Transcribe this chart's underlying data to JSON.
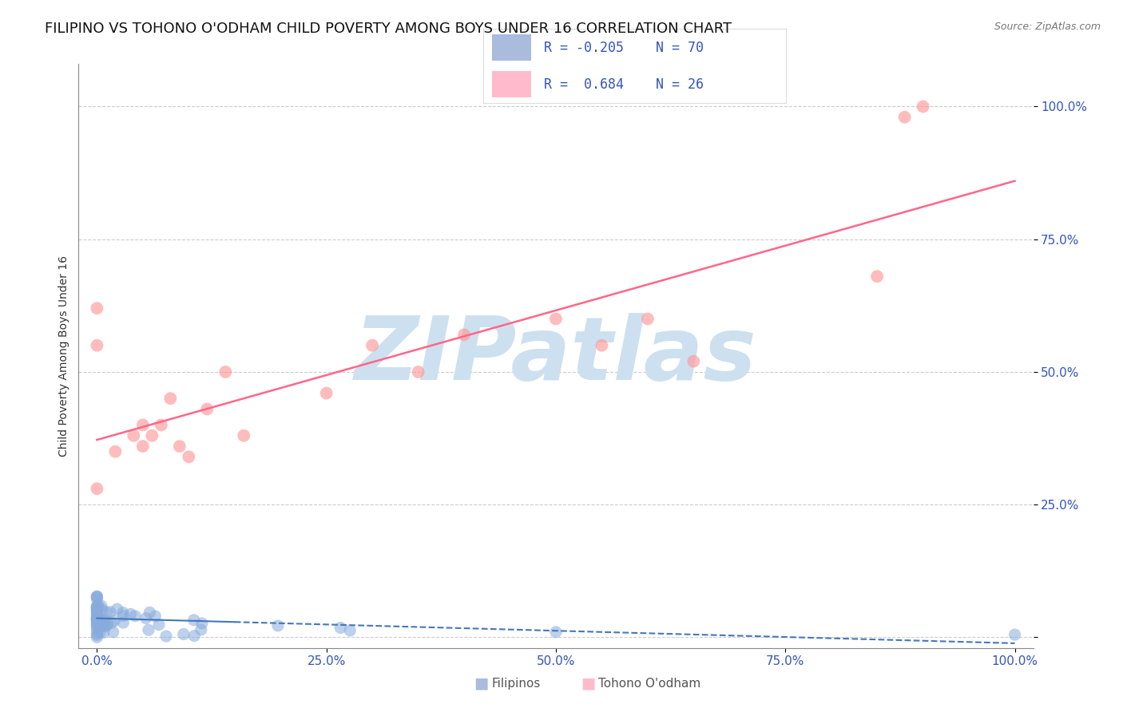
{
  "title": "FILIPINO VS TOHONO O'ODHAM CHILD POVERTY AMONG BOYS UNDER 16 CORRELATION CHART",
  "source": "Source: ZipAtlas.com",
  "ylabel": "Child Poverty Among Boys Under 16",
  "watermark": "ZIPatlas",
  "xlim": [
    -0.02,
    1.02
  ],
  "ylim": [
    -0.02,
    1.08
  ],
  "filipino_color": "#88AADD",
  "tohono_color": "#FF9999",
  "filipino_line_color": "#4477BB",
  "tohono_line_color": "#FF6688",
  "background_color": "#ffffff",
  "title_fontsize": 13,
  "axis_label_fontsize": 10,
  "tick_fontsize": 11,
  "watermark_color": "#cde0f0",
  "watermark_fontsize": 80,
  "fil_R": -0.205,
  "fil_N": 70,
  "toh_R": 0.684,
  "toh_N": 26,
  "legend_blue": "#AABBDD",
  "legend_pink": "#FFBBCC",
  "legend_text_color": "#3355BB"
}
